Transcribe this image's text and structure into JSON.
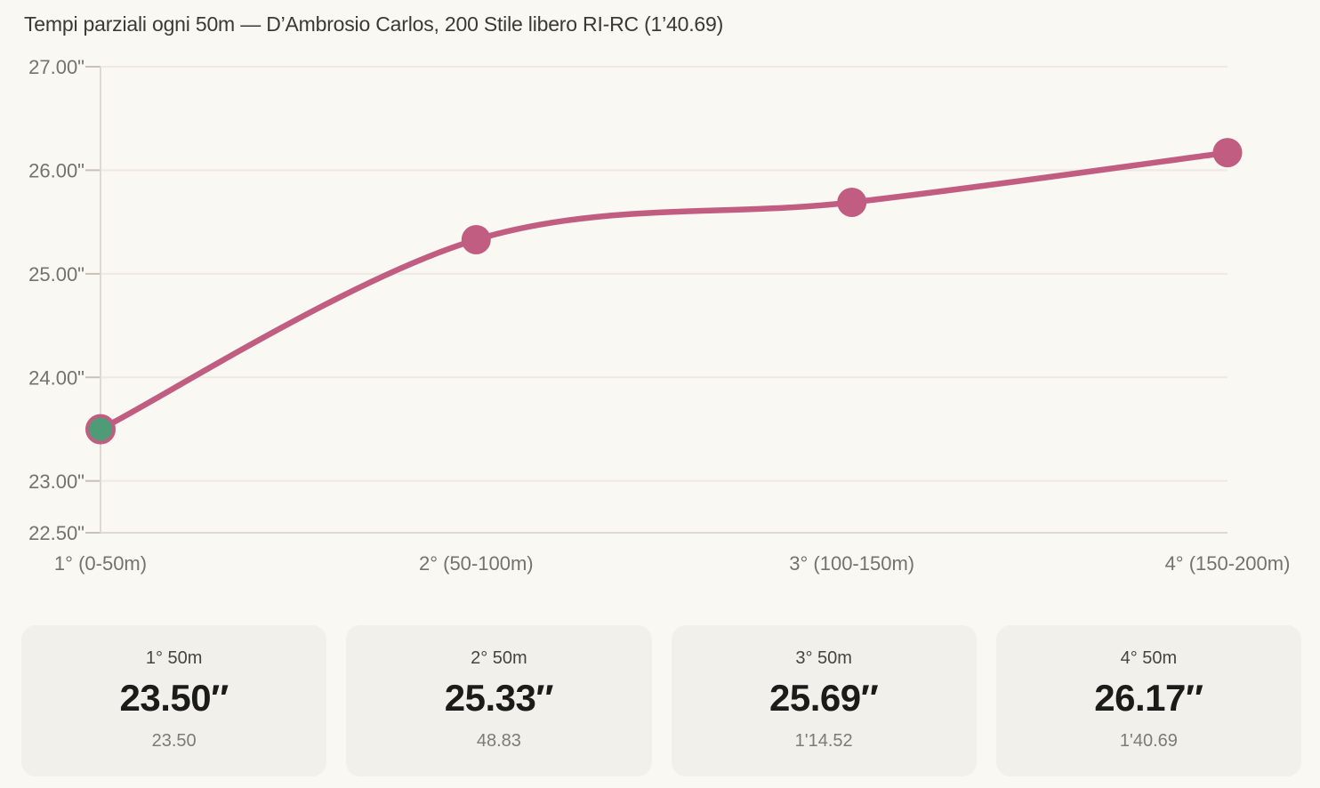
{
  "title": "Tempi parziali ogni 50m — D’Ambrosio Carlos, 200 Stile libero RI-RC (1’40.69)",
  "chart_data": {
    "type": "line",
    "title": "Tempi parziali ogni 50m — D’Ambrosio Carlos, 200 Stile libero RI-RC (1’40.69)",
    "categories": [
      "1° (0-50m)",
      "2° (50-100m)",
      "3° (100-150m)",
      "4° (150-200m)"
    ],
    "values": [
      23.5,
      25.33,
      25.69,
      26.17
    ],
    "value_labels": [
      "23.50″",
      "25.33″",
      "25.69″",
      "26.17″"
    ],
    "cumulative_labels": [
      "23.50",
      "48.83",
      "1'14.52",
      "1'40.69"
    ],
    "ylim": [
      22.5,
      27
    ],
    "yticks": [
      {
        "value": 27,
        "label": "27.00\""
      },
      {
        "value": 26,
        "label": "26.00\""
      },
      {
        "value": 25,
        "label": "25.00\""
      },
      {
        "value": 24,
        "label": "24.00\""
      },
      {
        "value": 23,
        "label": "23.00\""
      },
      {
        "value": 22.5,
        "label": "22.50\""
      }
    ],
    "grid": true,
    "legend": false,
    "smooth": true,
    "xlabel": "",
    "ylabel": ""
  },
  "colors": {
    "page_bg": "#faf8f2",
    "card_bg": "#f2f0ea",
    "accent": "#c25d82",
    "first_point": "#4d9c77",
    "grid": "#eceae3",
    "tick": "#c4c2bb",
    "axis_line": "#dbd9d2",
    "axis_label": "#73736e",
    "title": "#3a3933",
    "card_label": "#454540",
    "card_time": "#1b1b18",
    "card_cumulative": "#7c7b75"
  },
  "cards": [
    {
      "label": "1° 50m",
      "time": "23.50″",
      "cumulative": "23.50"
    },
    {
      "label": "2° 50m",
      "time": "25.33″",
      "cumulative": "48.83"
    },
    {
      "label": "3° 50m",
      "time": "25.69″",
      "cumulative": "1'14.52"
    },
    {
      "label": "4° 50m",
      "time": "26.17″",
      "cumulative": "1'40.69"
    }
  ]
}
